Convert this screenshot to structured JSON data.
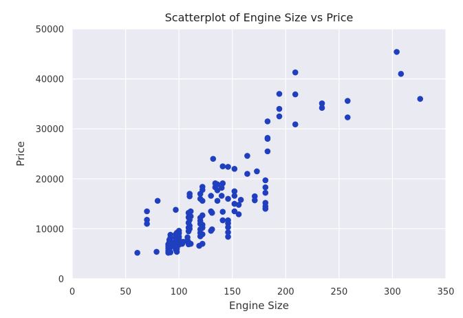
{
  "chart_data": {
    "type": "scatter",
    "title": "Scatterplot of Engine Size vs Price",
    "xlabel": "Engine Size",
    "ylabel": "Price",
    "xlim": [
      0,
      350
    ],
    "ylim": [
      0,
      50000
    ],
    "xticks": [
      "0",
      "50",
      "100",
      "150",
      "200",
      "250",
      "300",
      "350"
    ],
    "yticks": [
      "0",
      "10000",
      "20000",
      "30000",
      "40000",
      "50000"
    ],
    "grid": true,
    "colors": {
      "background": "#eaeaf2",
      "grid": "#ffffff",
      "point": "#1f3fbf"
    },
    "series": [
      {
        "points": [
          [
            61,
            5200
          ],
          [
            70,
            13500
          ],
          [
            70,
            11800
          ],
          [
            70,
            11000
          ],
          [
            79,
            5400
          ],
          [
            80,
            15600
          ],
          [
            90,
            5200
          ],
          [
            90,
            5600
          ],
          [
            90,
            6100
          ],
          [
            90,
            6500
          ],
          [
            90,
            6900
          ],
          [
            91,
            7300
          ],
          [
            91,
            7800
          ],
          [
            92,
            5300
          ],
          [
            92,
            6300
          ],
          [
            92,
            6700
          ],
          [
            92,
            7100
          ],
          [
            92,
            7600
          ],
          [
            92,
            8200
          ],
          [
            92,
            8800
          ],
          [
            97,
            5900
          ],
          [
            97,
            6500
          ],
          [
            97,
            7000
          ],
          [
            97,
            7500
          ],
          [
            97,
            8200
          ],
          [
            97,
            8900
          ],
          [
            97,
            13800
          ],
          [
            98,
            5400
          ],
          [
            98,
            6000
          ],
          [
            98,
            6600
          ],
          [
            98,
            7200
          ],
          [
            98,
            7800
          ],
          [
            98,
            8500
          ],
          [
            98,
            9200
          ],
          [
            100,
            6800
          ],
          [
            100,
            7300
          ],
          [
            100,
            7800
          ],
          [
            100,
            8400
          ],
          [
            100,
            9100
          ],
          [
            100,
            9600
          ],
          [
            103,
            7000
          ],
          [
            104,
            7400
          ],
          [
            108,
            7700
          ],
          [
            108,
            8300
          ],
          [
            109,
            6900
          ],
          [
            109,
            7300
          ],
          [
            109,
            9500
          ],
          [
            109,
            10200
          ],
          [
            109,
            11200
          ],
          [
            109,
            12300
          ],
          [
            109,
            13200
          ],
          [
            110,
            11800
          ],
          [
            110,
            10600
          ],
          [
            110,
            10000
          ],
          [
            110,
            16500
          ],
          [
            110,
            17000
          ],
          [
            111,
            12500
          ],
          [
            111,
            13500
          ],
          [
            111,
            7000
          ],
          [
            119,
            6600
          ],
          [
            120,
            8500
          ],
          [
            120,
            9200
          ],
          [
            120,
            9900
          ],
          [
            120,
            11000
          ],
          [
            120,
            11600
          ],
          [
            120,
            12200
          ],
          [
            120,
            16000
          ],
          [
            120,
            17000
          ],
          [
            122,
            7000
          ],
          [
            122,
            8900
          ],
          [
            122,
            10200
          ],
          [
            122,
            10800
          ],
          [
            122,
            12700
          ],
          [
            122,
            15600
          ],
          [
            122,
            17800
          ],
          [
            122,
            18400
          ],
          [
            130,
            9600
          ],
          [
            130,
            13500
          ],
          [
            130,
            16600
          ],
          [
            131,
            9900
          ],
          [
            131,
            13200
          ],
          [
            132,
            24000
          ],
          [
            134,
            18300
          ],
          [
            134,
            19100
          ],
          [
            136,
            15600
          ],
          [
            136,
            17700
          ],
          [
            136,
            18900
          ],
          [
            140,
            16600
          ],
          [
            140,
            18200
          ],
          [
            141,
            19100
          ],
          [
            141,
            22500
          ],
          [
            141,
            13400
          ],
          [
            141,
            11700
          ],
          [
            146,
            22400
          ],
          [
            146,
            8400
          ],
          [
            146,
            9300
          ],
          [
            146,
            10300
          ],
          [
            146,
            11100
          ],
          [
            146,
            11700
          ],
          [
            146,
            16000
          ],
          [
            152,
            13500
          ],
          [
            152,
            15000
          ],
          [
            152,
            16600
          ],
          [
            152,
            17500
          ],
          [
            152,
            22000
          ],
          [
            156,
            12900
          ],
          [
            156,
            14800
          ],
          [
            158,
            15800
          ],
          [
            164,
            24600
          ],
          [
            164,
            21000
          ],
          [
            171,
            15700
          ],
          [
            171,
            16500
          ],
          [
            173,
            21500
          ],
          [
            181,
            14000
          ],
          [
            181,
            14500
          ],
          [
            181,
            15200
          ],
          [
            181,
            17200
          ],
          [
            181,
            18300
          ],
          [
            181,
            19700
          ],
          [
            183,
            25500
          ],
          [
            183,
            28000
          ],
          [
            183,
            28200
          ],
          [
            183,
            31500
          ],
          [
            194,
            32500
          ],
          [
            194,
            34000
          ],
          [
            194,
            37000
          ],
          [
            209,
            41300
          ],
          [
            209,
            36900
          ],
          [
            209,
            30900
          ],
          [
            234,
            34200
          ],
          [
            234,
            35100
          ],
          [
            258,
            32300
          ],
          [
            258,
            35600
          ],
          [
            304,
            45400
          ],
          [
            308,
            41000
          ],
          [
            326,
            36000
          ]
        ]
      }
    ]
  }
}
